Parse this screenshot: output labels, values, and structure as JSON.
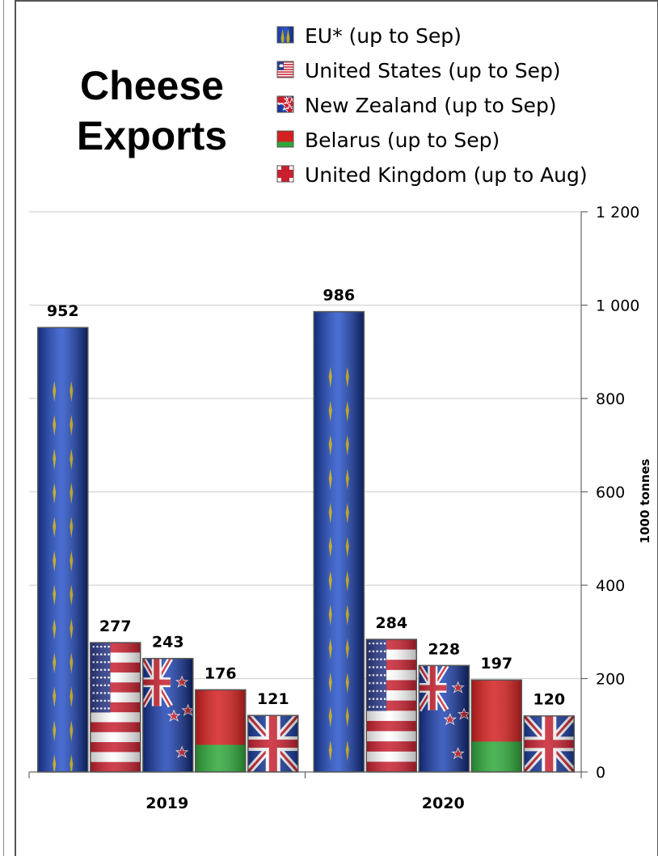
{
  "chart_data": {
    "type": "bar",
    "title": "Cheese Exports",
    "title_lines": [
      "Cheese",
      "Exports"
    ],
    "ylabel": "1000 tonnes",
    "xlabel": "",
    "ylim": [
      0,
      1200
    ],
    "yticks": [
      0,
      200,
      400,
      600,
      800,
      1000,
      1200
    ],
    "ytick_labels": [
      "0",
      "200",
      "400",
      "600",
      "800",
      "1 000",
      "1 200"
    ],
    "y_axis_side": "right",
    "grid": true,
    "legend_position": "top-right",
    "categories": [
      "2019",
      "2020"
    ],
    "series": [
      {
        "name": "EU* (up to Sep)",
        "values": [
          952,
          986
        ],
        "flag": "eu-flag",
        "color": "#1f3fa8"
      },
      {
        "name": "United States (up to Sep)",
        "values": [
          277,
          284
        ],
        "flag": "us-flag",
        "color": "#c8202f"
      },
      {
        "name": "New Zealand (up to Sep)",
        "values": [
          243,
          228
        ],
        "flag": "nz-flag",
        "color": "#1a3a9a"
      },
      {
        "name": "Belarus (up to Sep)",
        "values": [
          176,
          197
        ],
        "flag": "by-flag",
        "color": "#d42020"
      },
      {
        "name": "United Kingdom (up to Aug)",
        "values": [
          121,
          120
        ],
        "flag": "uk-flag",
        "color": "#1a3a9a"
      }
    ],
    "data_labels": [
      [
        "952",
        "986"
      ],
      [
        "277",
        "284"
      ],
      [
        "243",
        "228"
      ],
      [
        "176",
        "197"
      ],
      [
        "121",
        "120"
      ]
    ]
  }
}
